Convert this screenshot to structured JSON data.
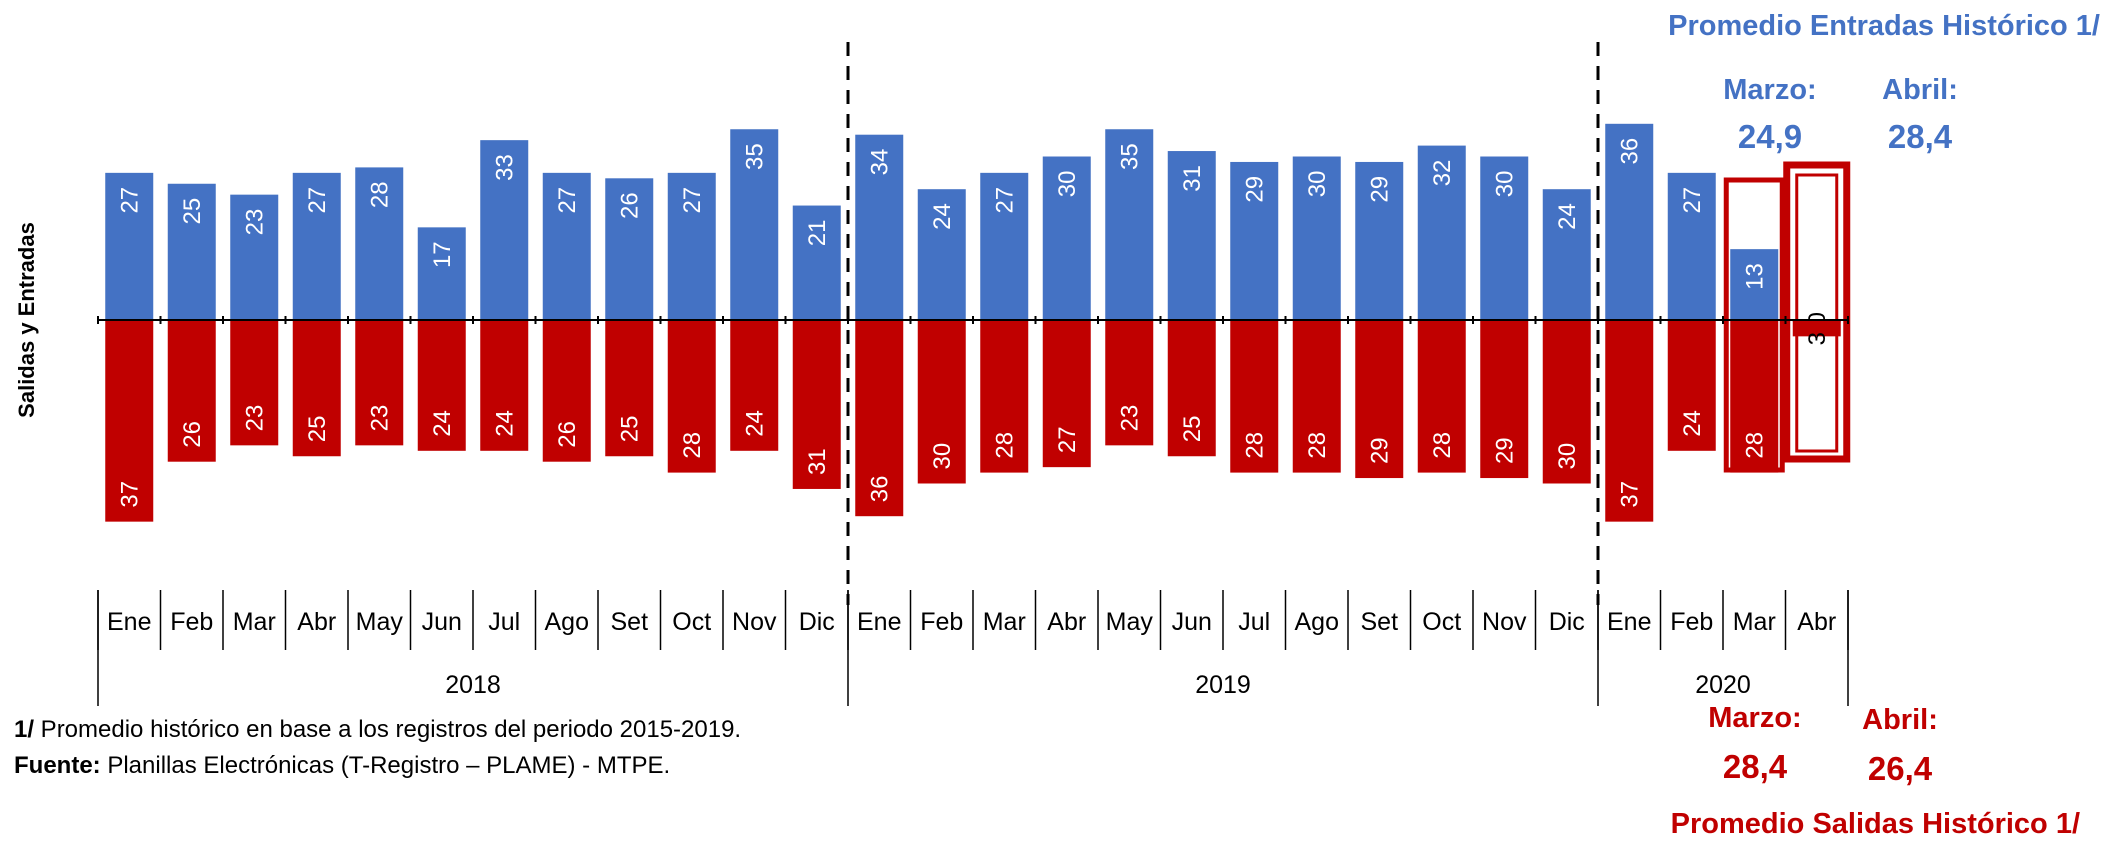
{
  "chart_data": {
    "type": "bar",
    "ylabel": "Salidas  y  Entradas",
    "years": [
      {
        "label": "2018",
        "months": [
          "Ene",
          "Feb",
          "Mar",
          "Abr",
          "May",
          "Jun",
          "Jul",
          "Ago",
          "Set",
          "Oct",
          "Nov",
          "Dic"
        ]
      },
      {
        "label": "2019",
        "months": [
          "Ene",
          "Feb",
          "Mar",
          "Abr",
          "May",
          "Jun",
          "Jul",
          "Ago",
          "Set",
          "Oct",
          "Nov",
          "Dic"
        ]
      },
      {
        "label": "2020",
        "months": [
          "Ene",
          "Feb",
          "Mar",
          "Abr"
        ]
      }
    ],
    "series": [
      {
        "name": "Entradas",
        "color": "#4472C4",
        "values": [
          27,
          25,
          23,
          27,
          28,
          17,
          33,
          27,
          26,
          27,
          35,
          21,
          34,
          24,
          27,
          30,
          35,
          31,
          29,
          30,
          29,
          32,
          30,
          24,
          36,
          27,
          13,
          0
        ]
      },
      {
        "name": "Salidas",
        "color": "#C00000",
        "values": [
          37,
          26,
          23,
          25,
          23,
          24,
          24,
          26,
          25,
          28,
          24,
          31,
          36,
          30,
          28,
          27,
          23,
          25,
          28,
          28,
          29,
          28,
          29,
          30,
          37,
          24,
          28,
          3
        ]
      }
    ]
  },
  "entradas_box": {
    "title": "Promedio Entradas Histórico 1/",
    "marzo_label": "Marzo:",
    "marzo_value": "24,9",
    "abril_label": "Abril:",
    "abril_value": "28,4",
    "color": "#4472C4"
  },
  "salidas_box": {
    "title": "Promedio Salidas Histórico 1/",
    "marzo_label": "Marzo:",
    "marzo_value": "28,4",
    "abril_label": "Abril:",
    "abril_value": "26,4",
    "color": "#C00000"
  },
  "footnotes": {
    "note_prefix": "1/",
    "note_text": " Promedio histórico en base a los registros del periodo 2015-2019.",
    "source_prefix": "Fuente:",
    "source_text": " Planillas Electrónicas (T-Registro – PLAME) - MTPE."
  }
}
